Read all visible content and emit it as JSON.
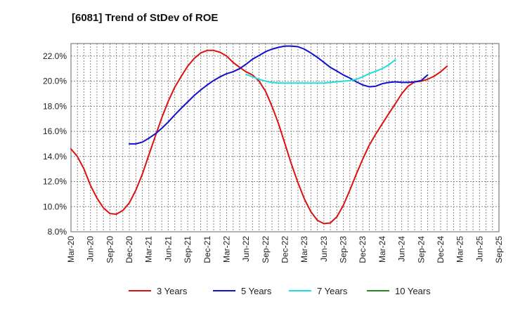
{
  "chart_data": {
    "type": "line",
    "title": "[6081]  Trend of StDev of ROE",
    "xlabel": "",
    "ylabel": "",
    "ylim": [
      8.0,
      23.0
    ],
    "yticks": [
      8.0,
      10.0,
      12.0,
      14.0,
      16.0,
      18.0,
      20.0,
      22.0
    ],
    "ytick_labels": [
      "8.0%",
      "10.0%",
      "12.0%",
      "14.0%",
      "16.0%",
      "18.0%",
      "20.0%",
      "22.0%"
    ],
    "categories": [
      "Mar-20",
      "Jun-20",
      "Sep-20",
      "Dec-20",
      "Mar-21",
      "Jun-21",
      "Sep-21",
      "Dec-21",
      "Mar-22",
      "Jun-22",
      "Sep-22",
      "Dec-22",
      "Mar-23",
      "Jun-23",
      "Sep-23",
      "Dec-23",
      "Mar-24",
      "Jun-24",
      "Sep-24",
      "Dec-24",
      "Mar-25",
      "Jun-25",
      "Sep-25"
    ],
    "grid": true,
    "legend_position": "bottom",
    "series": [
      {
        "name": "3 Years",
        "color": "#dd1111",
        "points": [
          [
            0,
            14.6
          ],
          [
            0.33,
            14.0
          ],
          [
            0.67,
            13.0
          ],
          [
            1,
            11.7
          ],
          [
            1.33,
            10.7
          ],
          [
            1.67,
            9.9
          ],
          [
            2,
            9.45
          ],
          [
            2.33,
            9.4
          ],
          [
            2.67,
            9.7
          ],
          [
            3,
            10.3
          ],
          [
            3.33,
            11.3
          ],
          [
            3.67,
            12.6
          ],
          [
            4,
            14.1
          ],
          [
            4.33,
            15.6
          ],
          [
            4.67,
            17.1
          ],
          [
            5,
            18.4
          ],
          [
            5.33,
            19.5
          ],
          [
            5.67,
            20.4
          ],
          [
            6,
            21.2
          ],
          [
            6.33,
            21.8
          ],
          [
            6.67,
            22.25
          ],
          [
            7,
            22.45
          ],
          [
            7.33,
            22.45
          ],
          [
            7.67,
            22.3
          ],
          [
            8,
            22.0
          ],
          [
            8.33,
            21.5
          ],
          [
            8.67,
            21.1
          ],
          [
            9,
            20.75
          ],
          [
            9.33,
            20.5
          ],
          [
            9.67,
            20.0
          ],
          [
            10,
            19.2
          ],
          [
            10.33,
            18.0
          ],
          [
            10.67,
            16.6
          ],
          [
            11,
            15.0
          ],
          [
            11.33,
            13.4
          ],
          [
            11.67,
            11.9
          ],
          [
            12,
            10.6
          ],
          [
            12.33,
            9.6
          ],
          [
            12.67,
            8.9
          ],
          [
            13,
            8.65
          ],
          [
            13.33,
            8.7
          ],
          [
            13.67,
            9.2
          ],
          [
            14,
            10.1
          ],
          [
            14.33,
            11.3
          ],
          [
            14.67,
            12.6
          ],
          [
            15,
            13.8
          ],
          [
            15.33,
            14.9
          ],
          [
            15.67,
            15.8
          ],
          [
            16,
            16.6
          ],
          [
            16.33,
            17.4
          ],
          [
            16.67,
            18.2
          ],
          [
            17,
            19.0
          ],
          [
            17.33,
            19.6
          ],
          [
            17.67,
            19.95
          ],
          [
            18,
            20.0
          ],
          [
            18.33,
            20.15
          ],
          [
            18.67,
            20.4
          ],
          [
            19,
            20.75
          ],
          [
            19.33,
            21.2
          ]
        ]
      },
      {
        "name": "5 Years",
        "color": "#1111cc",
        "points": [
          [
            3,
            15.0
          ],
          [
            3.33,
            15.0
          ],
          [
            3.67,
            15.15
          ],
          [
            4,
            15.45
          ],
          [
            4.33,
            15.8
          ],
          [
            4.67,
            16.25
          ],
          [
            5,
            16.75
          ],
          [
            5.33,
            17.3
          ],
          [
            5.67,
            17.85
          ],
          [
            6,
            18.35
          ],
          [
            6.33,
            18.85
          ],
          [
            6.67,
            19.3
          ],
          [
            7,
            19.7
          ],
          [
            7.33,
            20.05
          ],
          [
            7.67,
            20.35
          ],
          [
            8,
            20.6
          ],
          [
            8.33,
            20.75
          ],
          [
            8.67,
            21.0
          ],
          [
            9,
            21.35
          ],
          [
            9.33,
            21.75
          ],
          [
            9.67,
            22.05
          ],
          [
            10,
            22.35
          ],
          [
            10.33,
            22.55
          ],
          [
            10.67,
            22.7
          ],
          [
            11,
            22.8
          ],
          [
            11.33,
            22.8
          ],
          [
            11.67,
            22.75
          ],
          [
            12,
            22.55
          ],
          [
            12.33,
            22.25
          ],
          [
            12.67,
            21.9
          ],
          [
            13,
            21.5
          ],
          [
            13.33,
            21.1
          ],
          [
            13.67,
            20.8
          ],
          [
            14,
            20.5
          ],
          [
            14.33,
            20.25
          ],
          [
            14.67,
            19.95
          ],
          [
            15,
            19.7
          ],
          [
            15.33,
            19.55
          ],
          [
            15.67,
            19.6
          ],
          [
            16,
            19.8
          ],
          [
            16.33,
            19.9
          ],
          [
            16.67,
            19.95
          ],
          [
            17,
            19.9
          ],
          [
            17.33,
            19.9
          ],
          [
            17.67,
            19.95
          ],
          [
            18,
            20.05
          ],
          [
            18.33,
            20.5
          ]
        ]
      },
      {
        "name": "7 Years",
        "color": "#22dddd",
        "points": [
          [
            9,
            20.55
          ],
          [
            9.33,
            20.35
          ],
          [
            9.67,
            20.15
          ],
          [
            10,
            20.0
          ],
          [
            10.33,
            19.9
          ],
          [
            10.67,
            19.85
          ],
          [
            11,
            19.85
          ],
          [
            11.33,
            19.85
          ],
          [
            11.67,
            19.85
          ],
          [
            12,
            19.85
          ],
          [
            12.33,
            19.85
          ],
          [
            12.67,
            19.85
          ],
          [
            13,
            19.85
          ],
          [
            13.33,
            19.9
          ],
          [
            13.67,
            19.95
          ],
          [
            14,
            20.0
          ],
          [
            14.33,
            20.05
          ],
          [
            14.67,
            20.15
          ],
          [
            15,
            20.35
          ],
          [
            15.33,
            20.6
          ],
          [
            15.67,
            20.8
          ],
          [
            16,
            21.0
          ],
          [
            16.33,
            21.3
          ],
          [
            16.67,
            21.7
          ]
        ]
      },
      {
        "name": "10 Years",
        "color": "#228822",
        "points": []
      }
    ]
  }
}
